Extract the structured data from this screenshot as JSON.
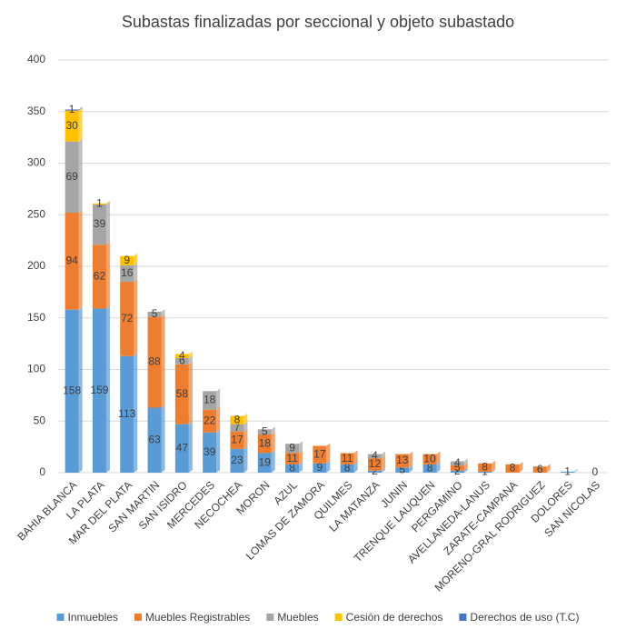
{
  "chart_data": {
    "type": "stacked-bar",
    "title": "Subastas finalizadas por seccional y objeto subastado",
    "categories": [
      "BAHIA BLANCA",
      "LA PLATA",
      "MAR DEL PLATA",
      "SAN MARTIN",
      "SAN ISIDRO",
      "MERCEDES",
      "NECOCHEA",
      "MORON",
      "AZUL",
      "LOMAS DE ZAMORA",
      "QUILMES",
      "LA MATANZA",
      "JUNIN",
      "TRENQUE LAUQUEN",
      "PERGAMINO",
      "AVELLANEDA-LANUS",
      "ZARATE-CAMPANA",
      "MORENO-GRAL RODRIGUEZ",
      "DOLORES",
      "SAN NICOLAS"
    ],
    "series": [
      {
        "name": "Inmuebles",
        "color": "#5b9bd5",
        "values": [
          158,
          159,
          113,
          63,
          47,
          39,
          23,
          19,
          8,
          9,
          8,
          2,
          5,
          8,
          2,
          1,
          null,
          null,
          1,
          0
        ]
      },
      {
        "name": "Muebles Registrables",
        "color": "#ed7d31",
        "values": [
          94,
          62,
          72,
          88,
          58,
          22,
          17,
          18,
          11,
          17,
          11,
          12,
          13,
          10,
          5,
          8,
          8,
          6,
          null,
          null
        ]
      },
      {
        "name": "Muebles",
        "color": "#a5a5a5",
        "values": [
          69,
          39,
          16,
          5,
          6,
          18,
          7,
          5,
          9,
          null,
          null,
          4,
          null,
          null,
          4,
          null,
          null,
          null,
          null,
          null
        ]
      },
      {
        "name": "Cesión de derechos",
        "color": "#ffc000",
        "values": [
          30,
          1,
          9,
          null,
          4,
          null,
          8,
          null,
          null,
          null,
          null,
          null,
          null,
          null,
          null,
          null,
          null,
          null,
          null,
          null
        ]
      },
      {
        "name": "Derechos de uso (T.C)",
        "color": "#4472c4",
        "values": [
          1,
          null,
          null,
          null,
          null,
          null,
          null,
          null,
          null,
          null,
          null,
          null,
          null,
          null,
          null,
          null,
          null,
          null,
          null,
          null
        ]
      }
    ],
    "ylim": [
      0,
      400
    ],
    "yticks": [
      0,
      50,
      100,
      150,
      200,
      250,
      300,
      350,
      400
    ],
    "grid": true,
    "legend": "bottom"
  }
}
